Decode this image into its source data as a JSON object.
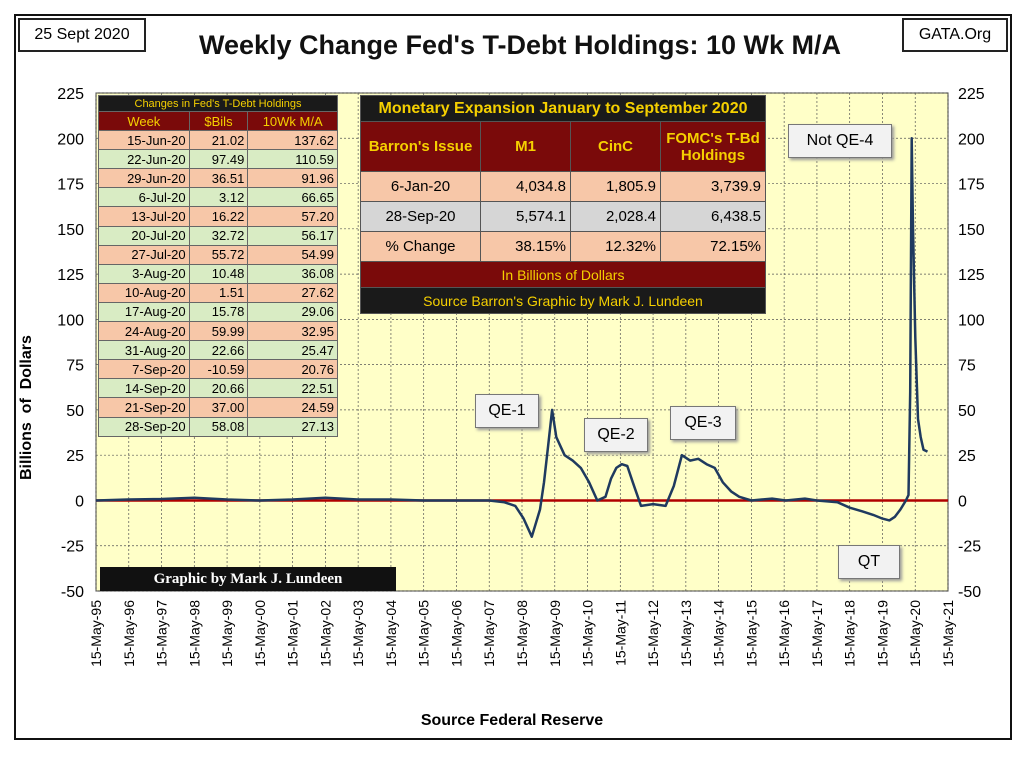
{
  "header": {
    "date": "25 Sept 2020",
    "source_tag": "GATA.Org"
  },
  "chart_data": {
    "type": "line",
    "title": "Weekly Change Fed's T-Debt Holdings: 10 Wk M/A",
    "xlabel": "Source Federal Reserve",
    "ylabel": "Billions  of  Dollars",
    "ylim": [
      -50,
      225
    ],
    "yticks": [
      225,
      200,
      175,
      150,
      125,
      100,
      75,
      50,
      25,
      0,
      -25,
      -50
    ],
    "xlim": [
      "1995-05-15",
      "2021-05-15"
    ],
    "xtick_labels": [
      "15-May-95",
      "15-May-96",
      "15-May-97",
      "15-May-98",
      "15-May-99",
      "15-May-00",
      "15-May-01",
      "15-May-02",
      "15-May-03",
      "15-May-04",
      "15-May-05",
      "15-May-06",
      "15-May-07",
      "15-May-08",
      "15-May-09",
      "15-May-10",
      "15-May-11",
      "15-May-12",
      "15-May-13",
      "15-May-14",
      "15-May-15",
      "15-May-16",
      "15-May-17",
      "15-May-18",
      "15-May-19",
      "15-May-20",
      "15-May-21"
    ],
    "grid": true,
    "zero_line_color": "#b00000",
    "line_color": "#1f3a5f",
    "plot_background": "#ffffc8",
    "series": [
      {
        "x": [
          "1995-05-15",
          "1996-05-15",
          "1997-05-15",
          "1998-05-15",
          "1999-05-15",
          "2000-05-15",
          "2001-05-15",
          "2002-05-15",
          "2003-05-15",
          "2004-05-15",
          "2005-05-15",
          "2006-05-15",
          "2007-05-15",
          "2007-11-01",
          "2008-03-01",
          "2008-06-01",
          "2008-09-01",
          "2008-12-01",
          "2009-01-15",
          "2009-03-01",
          "2009-04-15",
          "2009-06-01",
          "2009-09-01",
          "2009-12-01",
          "2010-03-01",
          "2010-06-01",
          "2010-09-01",
          "2010-12-01",
          "2011-02-01",
          "2011-04-01",
          "2011-06-01",
          "2011-08-01",
          "2011-10-01",
          "2012-01-01",
          "2012-05-15",
          "2012-10-01",
          "2013-01-01",
          "2013-04-01",
          "2013-07-01",
          "2013-10-01",
          "2014-01-01",
          "2014-04-01",
          "2014-07-01",
          "2014-10-01",
          "2015-01-01",
          "2015-05-15",
          "2016-01-01",
          "2016-06-01",
          "2017-01-01",
          "2017-05-15",
          "2018-01-01",
          "2018-05-15",
          "2018-10-01",
          "2019-02-01",
          "2019-05-15",
          "2019-08-01",
          "2019-10-01",
          "2019-12-01",
          "2020-02-01",
          "2020-03-01",
          "2020-03-20",
          "2020-04-05",
          "2020-04-20",
          "2020-05-15",
          "2020-06-15",
          "2020-07-15",
          "2020-08-15",
          "2020-09-28"
        ],
        "y": [
          0,
          0.5,
          0.8,
          1.5,
          0.5,
          0,
          0.5,
          1.5,
          0.5,
          0.5,
          0,
          0,
          0,
          -1,
          -3,
          -10,
          -20,
          -5,
          10,
          30,
          50,
          35,
          25,
          22,
          18,
          10,
          0,
          2,
          12,
          18,
          20,
          19,
          10,
          -3,
          -2,
          -3,
          8,
          25,
          22,
          23,
          20,
          18,
          10,
          5,
          2,
          0,
          1,
          0,
          1,
          0,
          -1,
          -4,
          -6,
          -8,
          -10,
          -11,
          -9,
          -5,
          0,
          3,
          60,
          200,
          150,
          90,
          45,
          35,
          28,
          27
        ]
      }
    ],
    "annotations": [
      {
        "label": "QE-1"
      },
      {
        "label": "QE-2"
      },
      {
        "label": "QE-3"
      },
      {
        "label": "Not QE-4"
      },
      {
        "label": "QT"
      }
    ]
  },
  "weekly_table": {
    "caption": "Changes in Fed's T-Debt Holdings",
    "headers": [
      "Week",
      "$Bils",
      "10Wk M/A"
    ],
    "rows": [
      [
        "15-Jun-20",
        "21.02",
        "137.62"
      ],
      [
        "22-Jun-20",
        "97.49",
        "110.59"
      ],
      [
        "29-Jun-20",
        "36.51",
        "91.96"
      ],
      [
        "6-Jul-20",
        "3.12",
        "66.65"
      ],
      [
        "13-Jul-20",
        "16.22",
        "57.20"
      ],
      [
        "20-Jul-20",
        "32.72",
        "56.17"
      ],
      [
        "27-Jul-20",
        "55.72",
        "54.99"
      ],
      [
        "3-Aug-20",
        "10.48",
        "36.08"
      ],
      [
        "10-Aug-20",
        "1.51",
        "27.62"
      ],
      [
        "17-Aug-20",
        "15.78",
        "29.06"
      ],
      [
        "24-Aug-20",
        "59.99",
        "32.95"
      ],
      [
        "31-Aug-20",
        "22.66",
        "25.47"
      ],
      [
        "7-Sep-20",
        "-10.59",
        "20.76"
      ],
      [
        "14-Sep-20",
        "20.66",
        "22.51"
      ],
      [
        "21-Sep-20",
        "37.00",
        "24.59"
      ],
      [
        "28-Sep-20",
        "58.08",
        "27.13"
      ]
    ]
  },
  "monetary_table": {
    "caption": "Monetary Expansion January to September 2020",
    "headers": [
      "Barron's Issue",
      "M1",
      "CinC",
      "FOMC's T-Bd Holdings"
    ],
    "rows": [
      [
        "6-Jan-20",
        "4,034.8",
        "1,805.9",
        "3,739.9"
      ],
      [
        "28-Sep-20",
        "5,574.1",
        "2,028.4",
        "6,438.5"
      ],
      [
        "% Change",
        "38.15%",
        "12.32%",
        "72.15%"
      ]
    ],
    "unit_note": "In Billions of Dollars",
    "source_note": "Source Barron's   Graphic by Mark J. Lundeen"
  },
  "credit": "Graphic by Mark J. Lundeen"
}
